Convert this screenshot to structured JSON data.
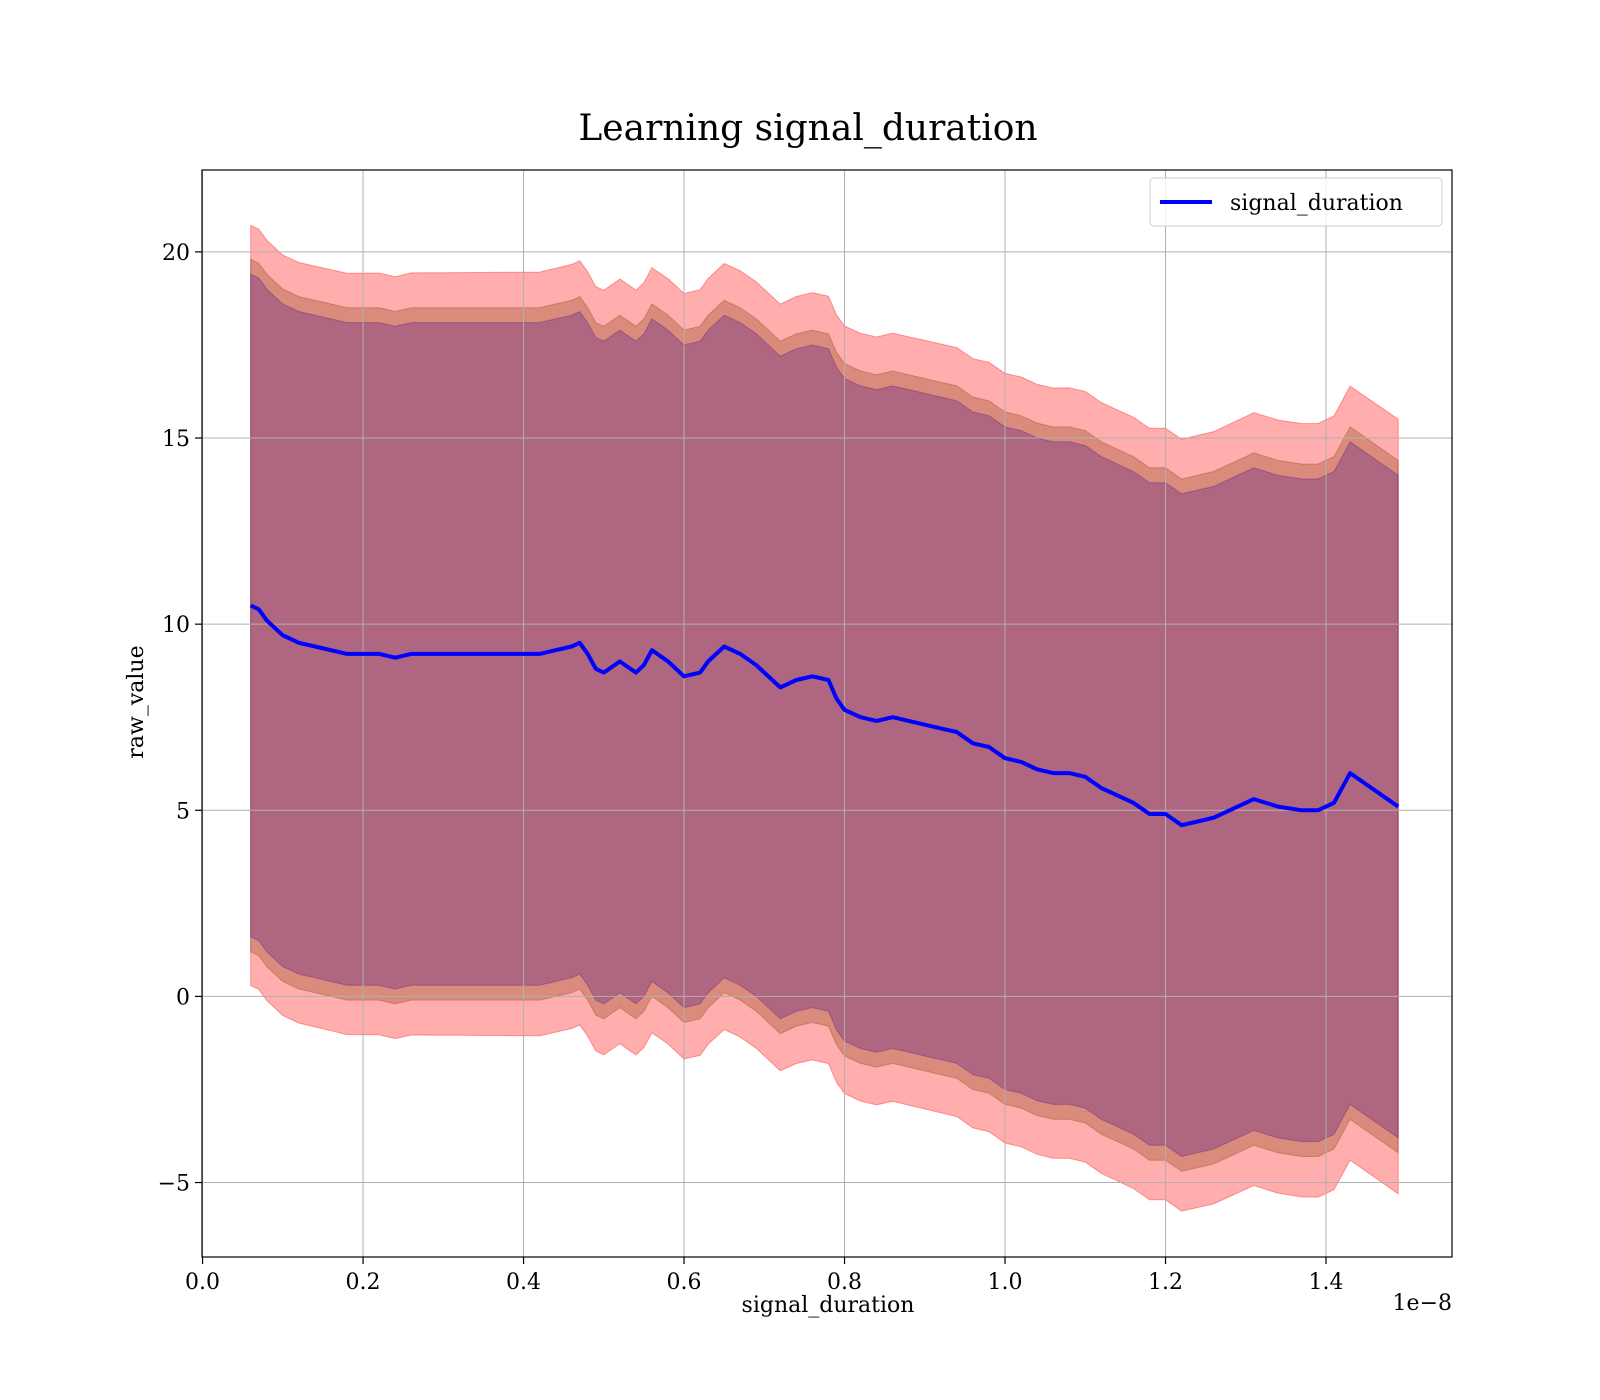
{
  "chart_data": {
    "type": "line",
    "title": "Learning signal_duration",
    "xlabel": "signal_duration",
    "ylabel": "raw_value",
    "x_offset_label": "1e−8",
    "xlim": [
      -7e-12,
      1.557e-08
    ],
    "ylim": [
      -7.0,
      22.2
    ],
    "x_ticks": [
      0.0,
      2e-09,
      4e-09,
      6e-09,
      8e-09,
      1e-08,
      1.2e-08,
      1.4e-08
    ],
    "x_tick_labels": [
      "0.0",
      "0.2",
      "0.4",
      "0.6",
      "0.8",
      "1.0",
      "1.2",
      "1.4"
    ],
    "y_ticks": [
      -5,
      0,
      5,
      10,
      15,
      20
    ],
    "y_tick_labels": [
      "−5",
      "0",
      "5",
      "10",
      "15",
      "20"
    ],
    "grid": true,
    "legend_position": "top-right",
    "colors": {
      "line": "#0000ff",
      "band_outer": "#ff0000",
      "band_mid": "#8b4513",
      "band_inner": "#551a8b"
    },
    "series": [
      {
        "name": "signal_duration",
        "x": [
          6e-10,
          7e-10,
          8e-10,
          9e-10,
          1e-09,
          1.2e-09,
          1.4e-09,
          1.6e-09,
          1.8e-09,
          2e-09,
          2.2e-09,
          2.4e-09,
          2.6e-09,
          2.8e-09,
          3e-09,
          3.2e-09,
          3.4e-09,
          3.6e-09,
          3.8e-09,
          4e-09,
          4.2e-09,
          4.4e-09,
          4.6e-09,
          4.7e-09,
          4.8e-09,
          4.9e-09,
          5e-09,
          5.2e-09,
          5.4e-09,
          5.5e-09,
          5.6e-09,
          5.8e-09,
          6e-09,
          6.2e-09,
          6.3e-09,
          6.5e-09,
          6.7e-09,
          6.9e-09,
          7.1e-09,
          7.2e-09,
          7.4e-09,
          7.6e-09,
          7.8e-09,
          7.9e-09,
          8e-09,
          8.2e-09,
          8.4e-09,
          8.6e-09,
          8.8e-09,
          9e-09,
          9.2e-09,
          9.4e-09,
          9.6e-09,
          9.8e-09,
          1e-08,
          1.02e-08,
          1.04e-08,
          1.06e-08,
          1.08e-08,
          1.1e-08,
          1.12e-08,
          1.14e-08,
          1.16e-08,
          1.18e-08,
          1.2e-08,
          1.22e-08,
          1.24e-08,
          1.26e-08,
          1.28e-08,
          1.31e-08,
          1.34e-08,
          1.37e-08,
          1.39e-08,
          1.41e-08,
          1.43e-08,
          1.49e-08
        ],
        "y": [
          10.5,
          10.4,
          10.1,
          9.9,
          9.7,
          9.5,
          9.4,
          9.3,
          9.2,
          9.2,
          9.2,
          9.1,
          9.2,
          9.2,
          9.2,
          9.2,
          9.2,
          9.2,
          9.2,
          9.2,
          9.2,
          9.3,
          9.4,
          9.5,
          9.2,
          8.8,
          8.7,
          9.0,
          8.7,
          8.9,
          9.3,
          9.0,
          8.6,
          8.7,
          9.0,
          9.4,
          9.2,
          8.9,
          8.5,
          8.3,
          8.5,
          8.6,
          8.5,
          8.0,
          7.7,
          7.5,
          7.4,
          7.5,
          7.4,
          7.3,
          7.2,
          7.1,
          6.8,
          6.7,
          6.4,
          6.3,
          6.1,
          6.0,
          6.0,
          5.9,
          5.6,
          5.4,
          5.2,
          4.9,
          4.9,
          4.6,
          4.7,
          4.8,
          5.0,
          5.3,
          5.1,
          5.0,
          5.0,
          5.2,
          6.0,
          5.1
        ]
      }
    ],
    "bands": [
      {
        "name_visible": false,
        "half_width": 10.2,
        "color": "band_outer"
      },
      {
        "name_visible": false,
        "half_width": 9.3,
        "color": "band_mid"
      },
      {
        "name_visible": false,
        "half_width": 8.9,
        "color": "band_inner"
      }
    ]
  }
}
